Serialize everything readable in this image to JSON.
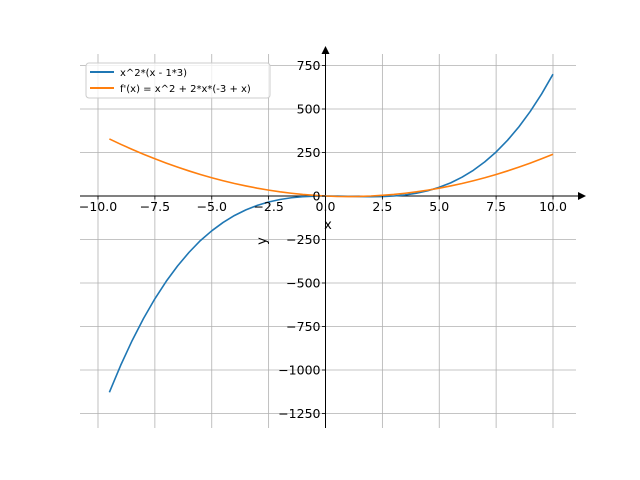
{
  "chart_data": {
    "type": "line",
    "title": "",
    "xlabel": "x",
    "ylabel": "y",
    "xlim": [
      -10.5,
      10.5
    ],
    "ylim": [
      -1330,
      860
    ],
    "grid": true,
    "legend_position": "top-left",
    "x_ticks": [
      -10.0,
      -7.5,
      -5.0,
      -2.5,
      0.0,
      2.5,
      5.0,
      7.5,
      10.0
    ],
    "x_tick_labels": [
      "−10.0",
      "−7.5",
      "−5.0",
      "−2.5",
      "0.0",
      "2.5",
      "5.0",
      "7.5",
      "10.0"
    ],
    "y_ticks": [
      750,
      500,
      250,
      0,
      -250,
      -500,
      -750,
      -1000,
      -1250
    ],
    "y_tick_labels": [
      "750",
      "500",
      "250",
      "0",
      "−250",
      "−500",
      "−750",
      "−1000",
      "−1250"
    ],
    "x": [
      -9.5,
      -9.0,
      -8.5,
      -8.0,
      -7.5,
      -7.0,
      -6.5,
      -6.0,
      -5.5,
      -5.0,
      -4.5,
      -4.0,
      -3.5,
      -3.0,
      -2.5,
      -2.0,
      -1.5,
      -1.0,
      -0.5,
      0.0,
      0.5,
      1.0,
      1.5,
      2.0,
      2.5,
      3.0,
      3.5,
      4.0,
      4.5,
      5.0,
      5.5,
      6.0,
      6.5,
      7.0,
      7.5,
      8.0,
      8.5,
      9.0,
      9.5,
      10.0
    ],
    "series": [
      {
        "name": "x^2*(x - 1*3)",
        "color": "#1f77b4",
        "values": [
          -1128.1,
          -972.0,
          -830.9,
          -704.0,
          -590.6,
          -490.0,
          -401.6,
          -324.0,
          -256.4,
          -200.0,
          -151.9,
          -112.0,
          -79.6,
          -54.0,
          -34.4,
          -20.0,
          -10.1,
          -4.0,
          -0.9,
          0.0,
          -0.6,
          -2.0,
          -3.4,
          -4.0,
          -3.1,
          0.0,
          6.1,
          16.0,
          30.4,
          50.0,
          75.6,
          108.0,
          147.9,
          196.0,
          253.1,
          320.0,
          397.4,
          486.0,
          586.6,
          700.0
        ]
      },
      {
        "name": "f'(x) = x^2 + 2*x*(-3 + x)",
        "color": "#ff7f0e",
        "values": [
          327.8,
          297.0,
          267.8,
          240.0,
          213.8,
          189.0,
          165.8,
          144.0,
          123.8,
          105.0,
          87.8,
          72.0,
          57.8,
          45.0,
          33.8,
          24.0,
          15.8,
          9.0,
          3.8,
          0.0,
          -2.3,
          -3.0,
          -2.3,
          0.0,
          3.8,
          9.0,
          15.8,
          24.0,
          33.8,
          45.0,
          57.8,
          72.0,
          87.8,
          105.0,
          123.8,
          144.0,
          165.8,
          189.0,
          213.8,
          240.0
        ]
      }
    ]
  }
}
